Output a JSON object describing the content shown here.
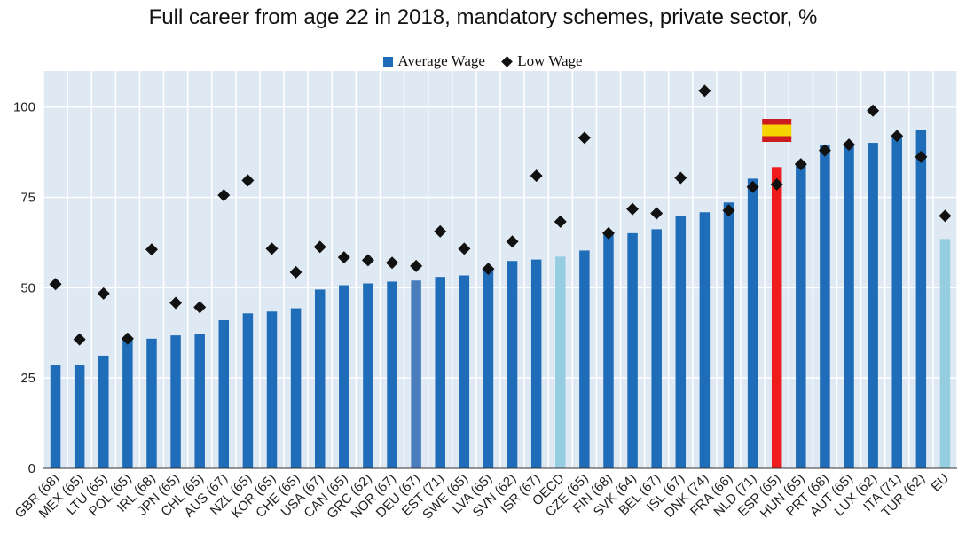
{
  "chart_data": {
    "type": "bar",
    "title": "Full career from age 22 in 2018, mandatory schemes, private sector, %",
    "legend_position": "top-center",
    "grid": true,
    "ylim": [
      0,
      110
    ],
    "yticks": [
      0,
      25,
      50,
      75,
      100
    ],
    "categories": [
      "GBR (68)",
      "MEX (65)",
      "LTU (65)",
      "POL (65)",
      "IRL (68)",
      "JPN (65)",
      "CHL (65)",
      "AUS (67)",
      "NZL (65)",
      "KOR (65)",
      "CHE (65)",
      "USA (67)",
      "CAN (65)",
      "GRC (62)",
      "NOR (67)",
      "DEU (67)",
      "EST (71)",
      "SWE (65)",
      "LVA (65)",
      "SVN (62)",
      "ISR (67)",
      "OECD",
      "CZE (65)",
      "FIN (68)",
      "SVK (64)",
      "BEL (67)",
      "ISL (67)",
      "DNK (74)",
      "FRA (66)",
      "NLD (71)",
      "ESP (65)",
      "HUN (65)",
      "PRT (68)",
      "AUT (65)",
      "LUX (62)",
      "ITA (71)",
      "TUR (62)",
      "EU"
    ],
    "series": [
      {
        "name": "Average Wage",
        "type": "bar",
        "values": [
          28.5,
          28.7,
          31.2,
          35.8,
          35.9,
          36.8,
          37.3,
          41.0,
          42.9,
          43.4,
          44.3,
          49.5,
          50.7,
          51.2,
          51.7,
          52.0,
          53.0,
          53.4,
          55.3,
          57.4,
          57.8,
          58.6,
          60.3,
          64.7,
          65.1,
          66.2,
          69.8,
          70.9,
          73.6,
          80.2,
          83.4,
          84.6,
          89.5,
          89.9,
          90.1,
          91.8,
          93.6,
          63.5
        ]
      },
      {
        "name": "Low Wage",
        "type": "marker",
        "values": [
          51.0,
          35.7,
          48.4,
          35.9,
          60.6,
          45.8,
          44.6,
          75.6,
          79.7,
          60.8,
          54.3,
          61.3,
          58.4,
          57.6,
          56.9,
          56.0,
          65.6,
          60.8,
          55.2,
          62.8,
          81.0,
          68.3,
          91.5,
          65.1,
          71.8,
          70.6,
          80.4,
          104.5,
          71.4,
          77.9,
          78.6,
          84.2,
          88.0,
          89.6,
          99.0,
          92.0,
          86.2,
          69.9
        ]
      }
    ],
    "colors": {
      "bar": "#1f6db8",
      "bar_aggregate": "#96cde0",
      "bar_deu": "#4a7dbb",
      "bar_highlight": "#ee1c1c",
      "marker": "#111111",
      "grid": "#ffffff",
      "plot_bg": "#dfe9f3",
      "flag_red": "#cc1b21",
      "flag_yellow": "#f6d400"
    },
    "aggregate_categories": [
      "OECD",
      "EU"
    ],
    "highlight_category": "ESP (65)",
    "emphasis_category": "DEU (67)",
    "flag_icon": "spain-flag-icon"
  }
}
